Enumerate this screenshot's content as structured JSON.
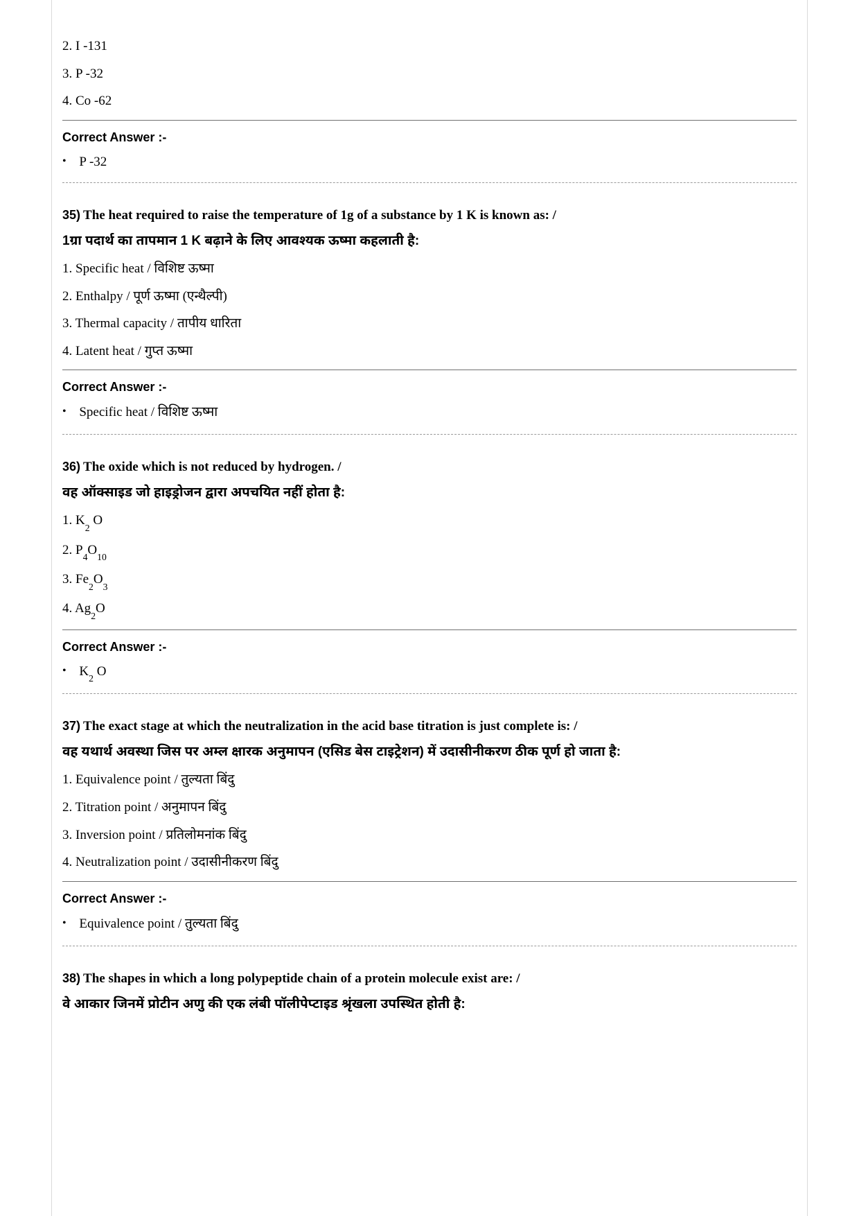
{
  "pre_options": [
    "2. I -131",
    "3. P -32",
    "4. Co -62"
  ],
  "pre_answer_label": "Correct Answer :-",
  "pre_answer": " P -32",
  "questions": [
    {
      "num": "35)",
      "en": " The heat required to raise the temperature of 1g of a substance by 1 K is known as: /",
      "hi": "1ग्रा पदार्थ का तापमान 1 K बढ़ाने के लिए आवश्यक ऊष्मा कहलाती है:",
      "options": [
        "1. Specific heat / विशिष्ट ऊष्मा",
        "2. Enthalpy / पूर्ण ऊष्मा (एन्थैल्पी)",
        "3. Thermal capacity / तापीय धारिता",
        "4. Latent heat / गुप्त ऊष्मा"
      ],
      "answer_label": "Correct Answer :-",
      "answer": " Specific heat / विशिष्ट ऊष्मा"
    },
    {
      "num": "36)",
      "en": " The oxide which is not reduced by hydrogen. /",
      "hi": "वह ऑक्साइड जो हाइड्रोजन द्वारा अपचयित नहीं होता है:",
      "options_html": [
        "1. K<sub>2</sub> O",
        "2. P<sub>4</sub>O<sub>10</sub>",
        "3. Fe<sub>2</sub>O<sub>3</sub>",
        "4. Ag<sub>2</sub>O"
      ],
      "answer_label": "Correct Answer :-",
      "answer_html": " K<sub>2</sub> O"
    },
    {
      "num": "37)",
      "en": " The exact stage at which the neutralization in the acid base titration is just complete is: /",
      "hi": "वह यथार्थ अवस्था जिस पर अम्ल क्षारक अनुमापन (एसिड बेस टाइट्रेशन) में उदासीनीकरण ठीक पूर्ण हो जाता है:",
      "options": [
        "1. Equivalence point / तुल्यता बिंदु",
        "2. Titration point / अनुमापन बिंदु",
        "3. Inversion point / प्रतिलोमनांक बिंदु",
        "4. Neutralization point / उदासीनीकरण बिंदु"
      ],
      "answer_label": "Correct Answer :-",
      "answer": " Equivalence point / तुल्यता बिंदु"
    },
    {
      "num": "38)",
      "en": " The shapes in which a long polypeptide chain of a protein molecule exist are: /",
      "hi": "वे आकार जिनमें प्रोटीन अणु की एक लंबी पॉलीपेप्टाइड श्रृंखला उपस्थित होती है:"
    }
  ]
}
